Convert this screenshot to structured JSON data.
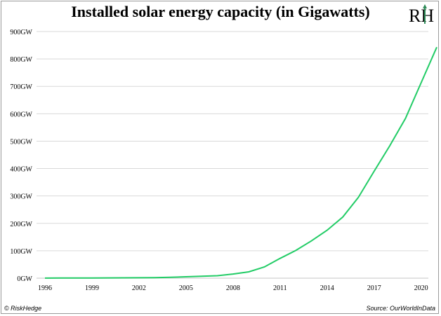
{
  "header": {
    "title": "Installed solar energy capacity (in Gigawatts)",
    "logo_text": "RH"
  },
  "footer": {
    "credit": "© RiskHedge",
    "source": "Source: OurWorldInData"
  },
  "colors": {
    "line": "#22cc66",
    "axis": "#000000",
    "grid": "#d9d9d9",
    "logo_accent": "#2e8b57"
  },
  "chart_data": {
    "type": "line",
    "title": "Installed solar energy capacity (in Gigawatts)",
    "xlabel": "",
    "ylabel": "",
    "ylim": [
      0,
      900
    ],
    "xlim": [
      1996,
      2021
    ],
    "grid": true,
    "x_ticks": [
      "1996",
      "1999",
      "2002",
      "2005",
      "2008",
      "2011",
      "2014",
      "2017",
      "2020"
    ],
    "y_ticks": [
      "0GW",
      "100GW",
      "200GW",
      "300GW",
      "400GW",
      "500GW",
      "600GW",
      "700GW",
      "800GW",
      "900GW"
    ],
    "series": [
      {
        "x": [
          1996,
          1997,
          1998,
          1999,
          2000,
          2001,
          2002,
          2003,
          2004,
          2005,
          2006,
          2007,
          2008,
          2009,
          2010,
          2011,
          2012,
          2013,
          2014,
          2015,
          2016,
          2017,
          2018,
          2019,
          2020,
          2021
        ],
        "values": [
          0.3,
          0.4,
          0.5,
          0.6,
          1,
          1.2,
          1.5,
          2,
          3,
          5,
          7,
          9,
          15,
          23,
          41,
          72,
          101,
          136,
          175,
          223,
          295,
          390,
          483,
          583,
          713,
          843
        ]
      }
    ]
  }
}
